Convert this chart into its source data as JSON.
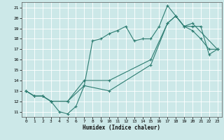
{
  "xlabel": "Humidex (Indice chaleur)",
  "bg_color": "#cce8e8",
  "grid_color": "#ffffff",
  "line_color": "#2e7d72",
  "xlim": [
    -0.5,
    23.5
  ],
  "ylim": [
    10.5,
    21.5
  ],
  "xticks": [
    0,
    1,
    2,
    3,
    4,
    5,
    6,
    7,
    8,
    9,
    10,
    11,
    12,
    13,
    14,
    15,
    16,
    17,
    18,
    19,
    20,
    21,
    22,
    23
  ],
  "yticks": [
    11,
    12,
    13,
    14,
    15,
    16,
    17,
    18,
    19,
    20,
    21
  ],
  "series1_x": [
    0,
    1,
    2,
    3,
    4,
    5,
    6,
    7,
    8,
    9,
    10,
    11,
    12,
    13,
    14,
    15,
    16,
    17,
    18,
    19,
    20,
    21,
    22,
    23
  ],
  "series1_y": [
    13,
    12.5,
    12.5,
    12,
    11,
    10.8,
    11.5,
    13.5,
    17.8,
    18,
    18.5,
    18.8,
    19.2,
    17.8,
    18,
    18,
    19.2,
    21.2,
    20.2,
    19.2,
    18.8,
    18,
    17,
    17
  ],
  "series2_x": [
    0,
    1,
    2,
    3,
    5,
    7,
    10,
    15,
    17,
    18,
    19,
    20,
    21,
    22,
    23
  ],
  "series2_y": [
    13,
    12.5,
    12.5,
    12,
    12,
    14,
    14,
    16,
    19.5,
    20.2,
    19.2,
    19.2,
    19.2,
    16.5,
    17
  ],
  "series3_x": [
    0,
    1,
    2,
    3,
    5,
    7,
    10,
    15,
    17,
    18,
    19,
    20,
    23
  ],
  "series3_y": [
    13,
    12.5,
    12.5,
    12,
    12,
    13.5,
    13,
    15.5,
    19.5,
    20.2,
    19.2,
    19.5,
    17
  ],
  "marker": "+"
}
